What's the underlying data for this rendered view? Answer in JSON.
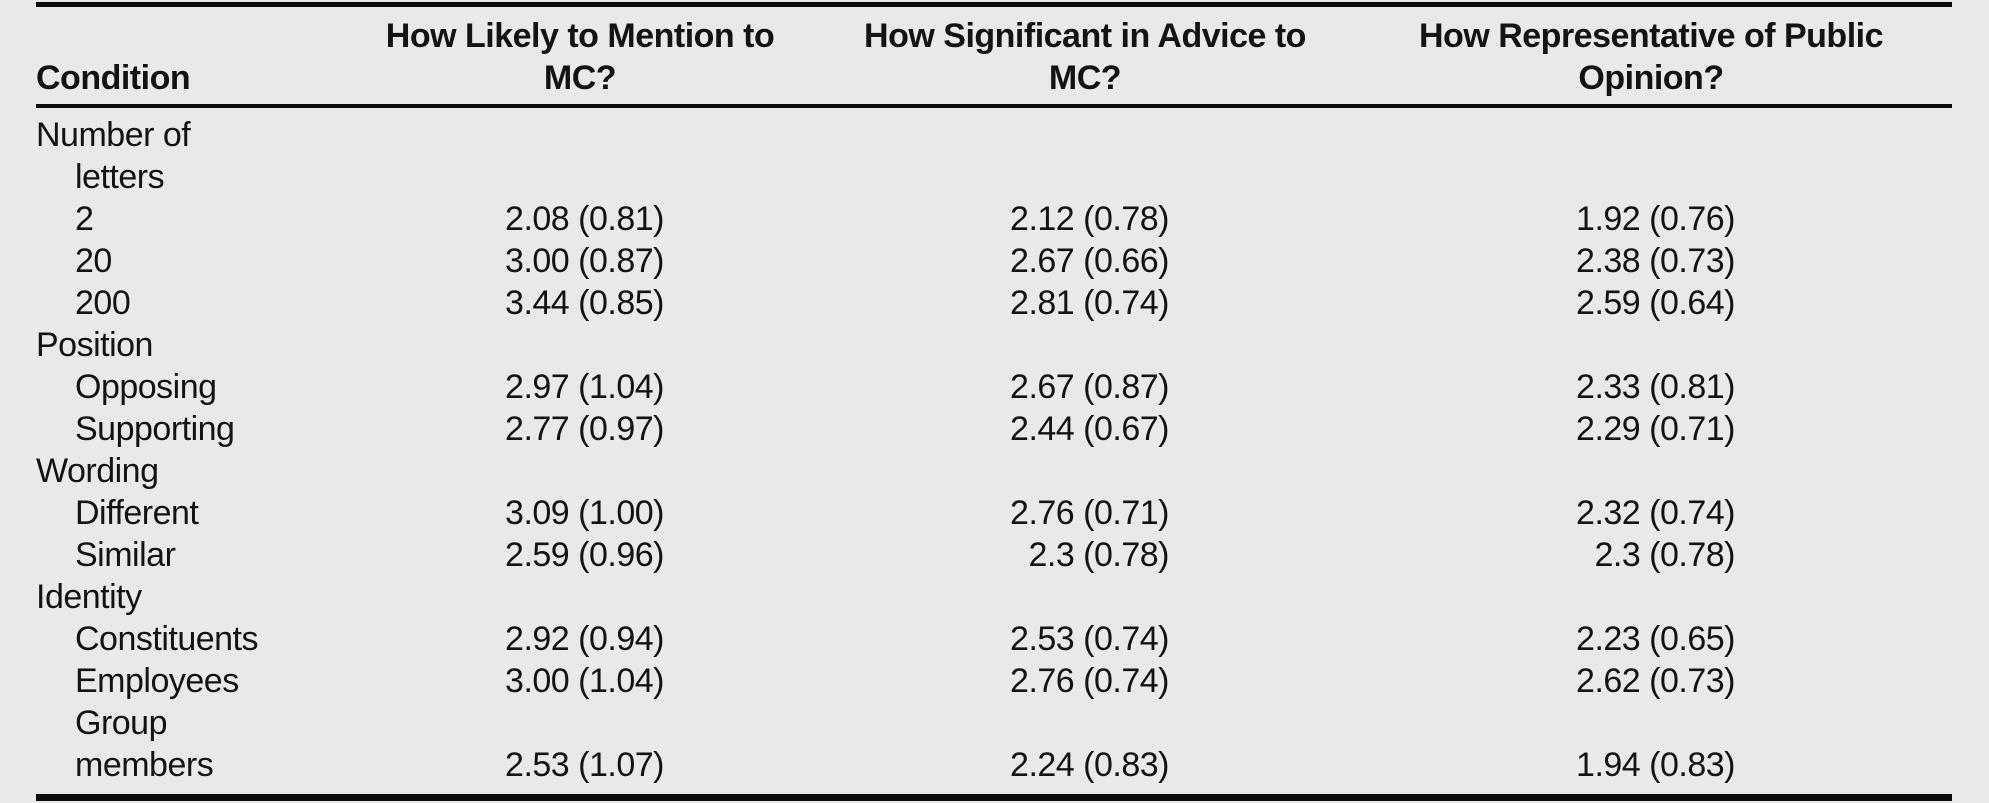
{
  "page": {
    "background_color": "#e8e9ea",
    "rule_color": "#0c0c0c",
    "text_color": "#131313"
  },
  "table": {
    "header": {
      "condition": "Condition",
      "col2_lines": [
        "How Likely to Mention to",
        "MC?"
      ],
      "col3_lines": [
        "How Significant in Advice to",
        "MC?"
      ],
      "col4_lines": [
        "How Representative of Public",
        "Opinion?"
      ]
    },
    "sections": [
      {
        "group_lines": [
          "Number of",
          "letters"
        ],
        "rows": [
          {
            "label": "2",
            "values": [
              "2.08 (0.81)",
              "2.12 (0.78)",
              "1.92 (0.76)"
            ]
          },
          {
            "label": "20",
            "values": [
              "3.00 (0.87)",
              "2.67 (0.66)",
              "2.38 (0.73)"
            ]
          },
          {
            "label": "200",
            "values": [
              "3.44 (0.85)",
              "2.81 (0.74)",
              "2.59 (0.64)"
            ]
          }
        ]
      },
      {
        "group_lines": [
          "Position"
        ],
        "rows": [
          {
            "label": "Opposing",
            "values": [
              "2.97 (1.04)",
              "2.67 (0.87)",
              "2.33 (0.81)"
            ]
          },
          {
            "label": "Supporting",
            "values": [
              "2.77 (0.97)",
              "2.44 (0.67)",
              "2.29 (0.71)"
            ]
          }
        ]
      },
      {
        "group_lines": [
          "Wording"
        ],
        "rows": [
          {
            "label": "Different",
            "values": [
              "3.09 (1.00)",
              "2.76 (0.71)",
              "2.32 (0.74)"
            ]
          },
          {
            "label": "Similar",
            "values": [
              "2.59 (0.96)",
              "2.3 (0.78)",
              "2.3 (0.78)"
            ]
          }
        ]
      },
      {
        "group_lines": [
          "Identity"
        ],
        "rows": [
          {
            "label": "Constituents",
            "values": [
              "2.92 (0.94)",
              "2.53 (0.74)",
              "2.23 (0.65)"
            ]
          },
          {
            "label": "Employees",
            "values": [
              "3.00 (1.04)",
              "2.76 (0.74)",
              "2.62 (0.73)"
            ]
          },
          {
            "label_lines": [
              "Group",
              "members"
            ],
            "values": [
              "2.53 (1.07)",
              "2.24 (0.83)",
              "1.94 (0.83)"
            ]
          }
        ]
      }
    ]
  }
}
